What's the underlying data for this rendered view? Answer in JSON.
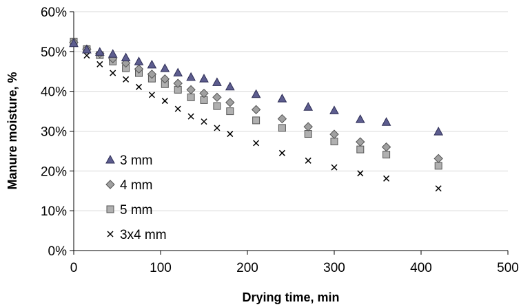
{
  "chart_data": {
    "type": "scatter",
    "title": "",
    "xlabel": "Drying time, min",
    "ylabel": "Manure moisture, %",
    "xlim": [
      0,
      500
    ],
    "ylim": [
      0,
      60
    ],
    "x_ticks": [
      "0",
      "100",
      "200",
      "300",
      "400",
      "500"
    ],
    "y_ticks": [
      "0%",
      "10%",
      "20%",
      "30%",
      "40%",
      "50%",
      "60%"
    ],
    "grid": "horizontal",
    "legend_position": "lower-left",
    "series": [
      {
        "name": "3 mm",
        "marker": "triangle",
        "color": "#3d3d73",
        "x": [
          0,
          15,
          30,
          45,
          60,
          75,
          90,
          105,
          120,
          135,
          150,
          165,
          180,
          210,
          240,
          270,
          300,
          330,
          360,
          420
        ],
        "y": [
          52.1,
          50.5,
          49.9,
          49.4,
          48.5,
          47.5,
          46.7,
          45.8,
          44.7,
          43.6,
          43.2,
          42.3,
          41.2,
          39.3,
          38.2,
          36.1,
          35.2,
          33.0,
          32.3,
          29.9
        ]
      },
      {
        "name": "4 mm",
        "marker": "diamond",
        "color": "#8c8c8c",
        "x": [
          0,
          15,
          30,
          45,
          60,
          75,
          90,
          105,
          120,
          135,
          150,
          165,
          180,
          210,
          240,
          270,
          300,
          330,
          360,
          420
        ],
        "y": [
          52.3,
          50.6,
          49.5,
          48.2,
          47.1,
          45.6,
          44.3,
          43.1,
          42.0,
          40.4,
          39.5,
          38.5,
          37.2,
          35.4,
          33.1,
          31.1,
          29.2,
          27.3,
          26.0,
          23.1
        ]
      },
      {
        "name": "5 mm",
        "marker": "square",
        "color": "#a6a6a6",
        "x": [
          0,
          15,
          30,
          45,
          60,
          75,
          90,
          105,
          120,
          135,
          150,
          165,
          180,
          210,
          240,
          270,
          300,
          330,
          360,
          420
        ],
        "y": [
          52.5,
          50.6,
          49.1,
          47.5,
          45.8,
          44.6,
          43.2,
          41.8,
          40.4,
          38.5,
          37.8,
          36.3,
          35.0,
          32.7,
          30.8,
          29.3,
          27.4,
          25.4,
          24.1,
          21.3
        ]
      },
      {
        "name": "3x4 mm",
        "marker": "cross",
        "color": "#000000",
        "x": [
          0,
          15,
          30,
          45,
          60,
          75,
          90,
          105,
          120,
          135,
          150,
          165,
          180,
          210,
          240,
          270,
          300,
          330,
          360,
          420
        ],
        "y": [
          51.9,
          49.0,
          46.8,
          44.6,
          43.0,
          41.1,
          39.1,
          37.6,
          35.6,
          33.7,
          32.4,
          30.8,
          29.3,
          27.0,
          24.5,
          22.6,
          20.9,
          19.4,
          18.1,
          15.6
        ]
      }
    ]
  }
}
